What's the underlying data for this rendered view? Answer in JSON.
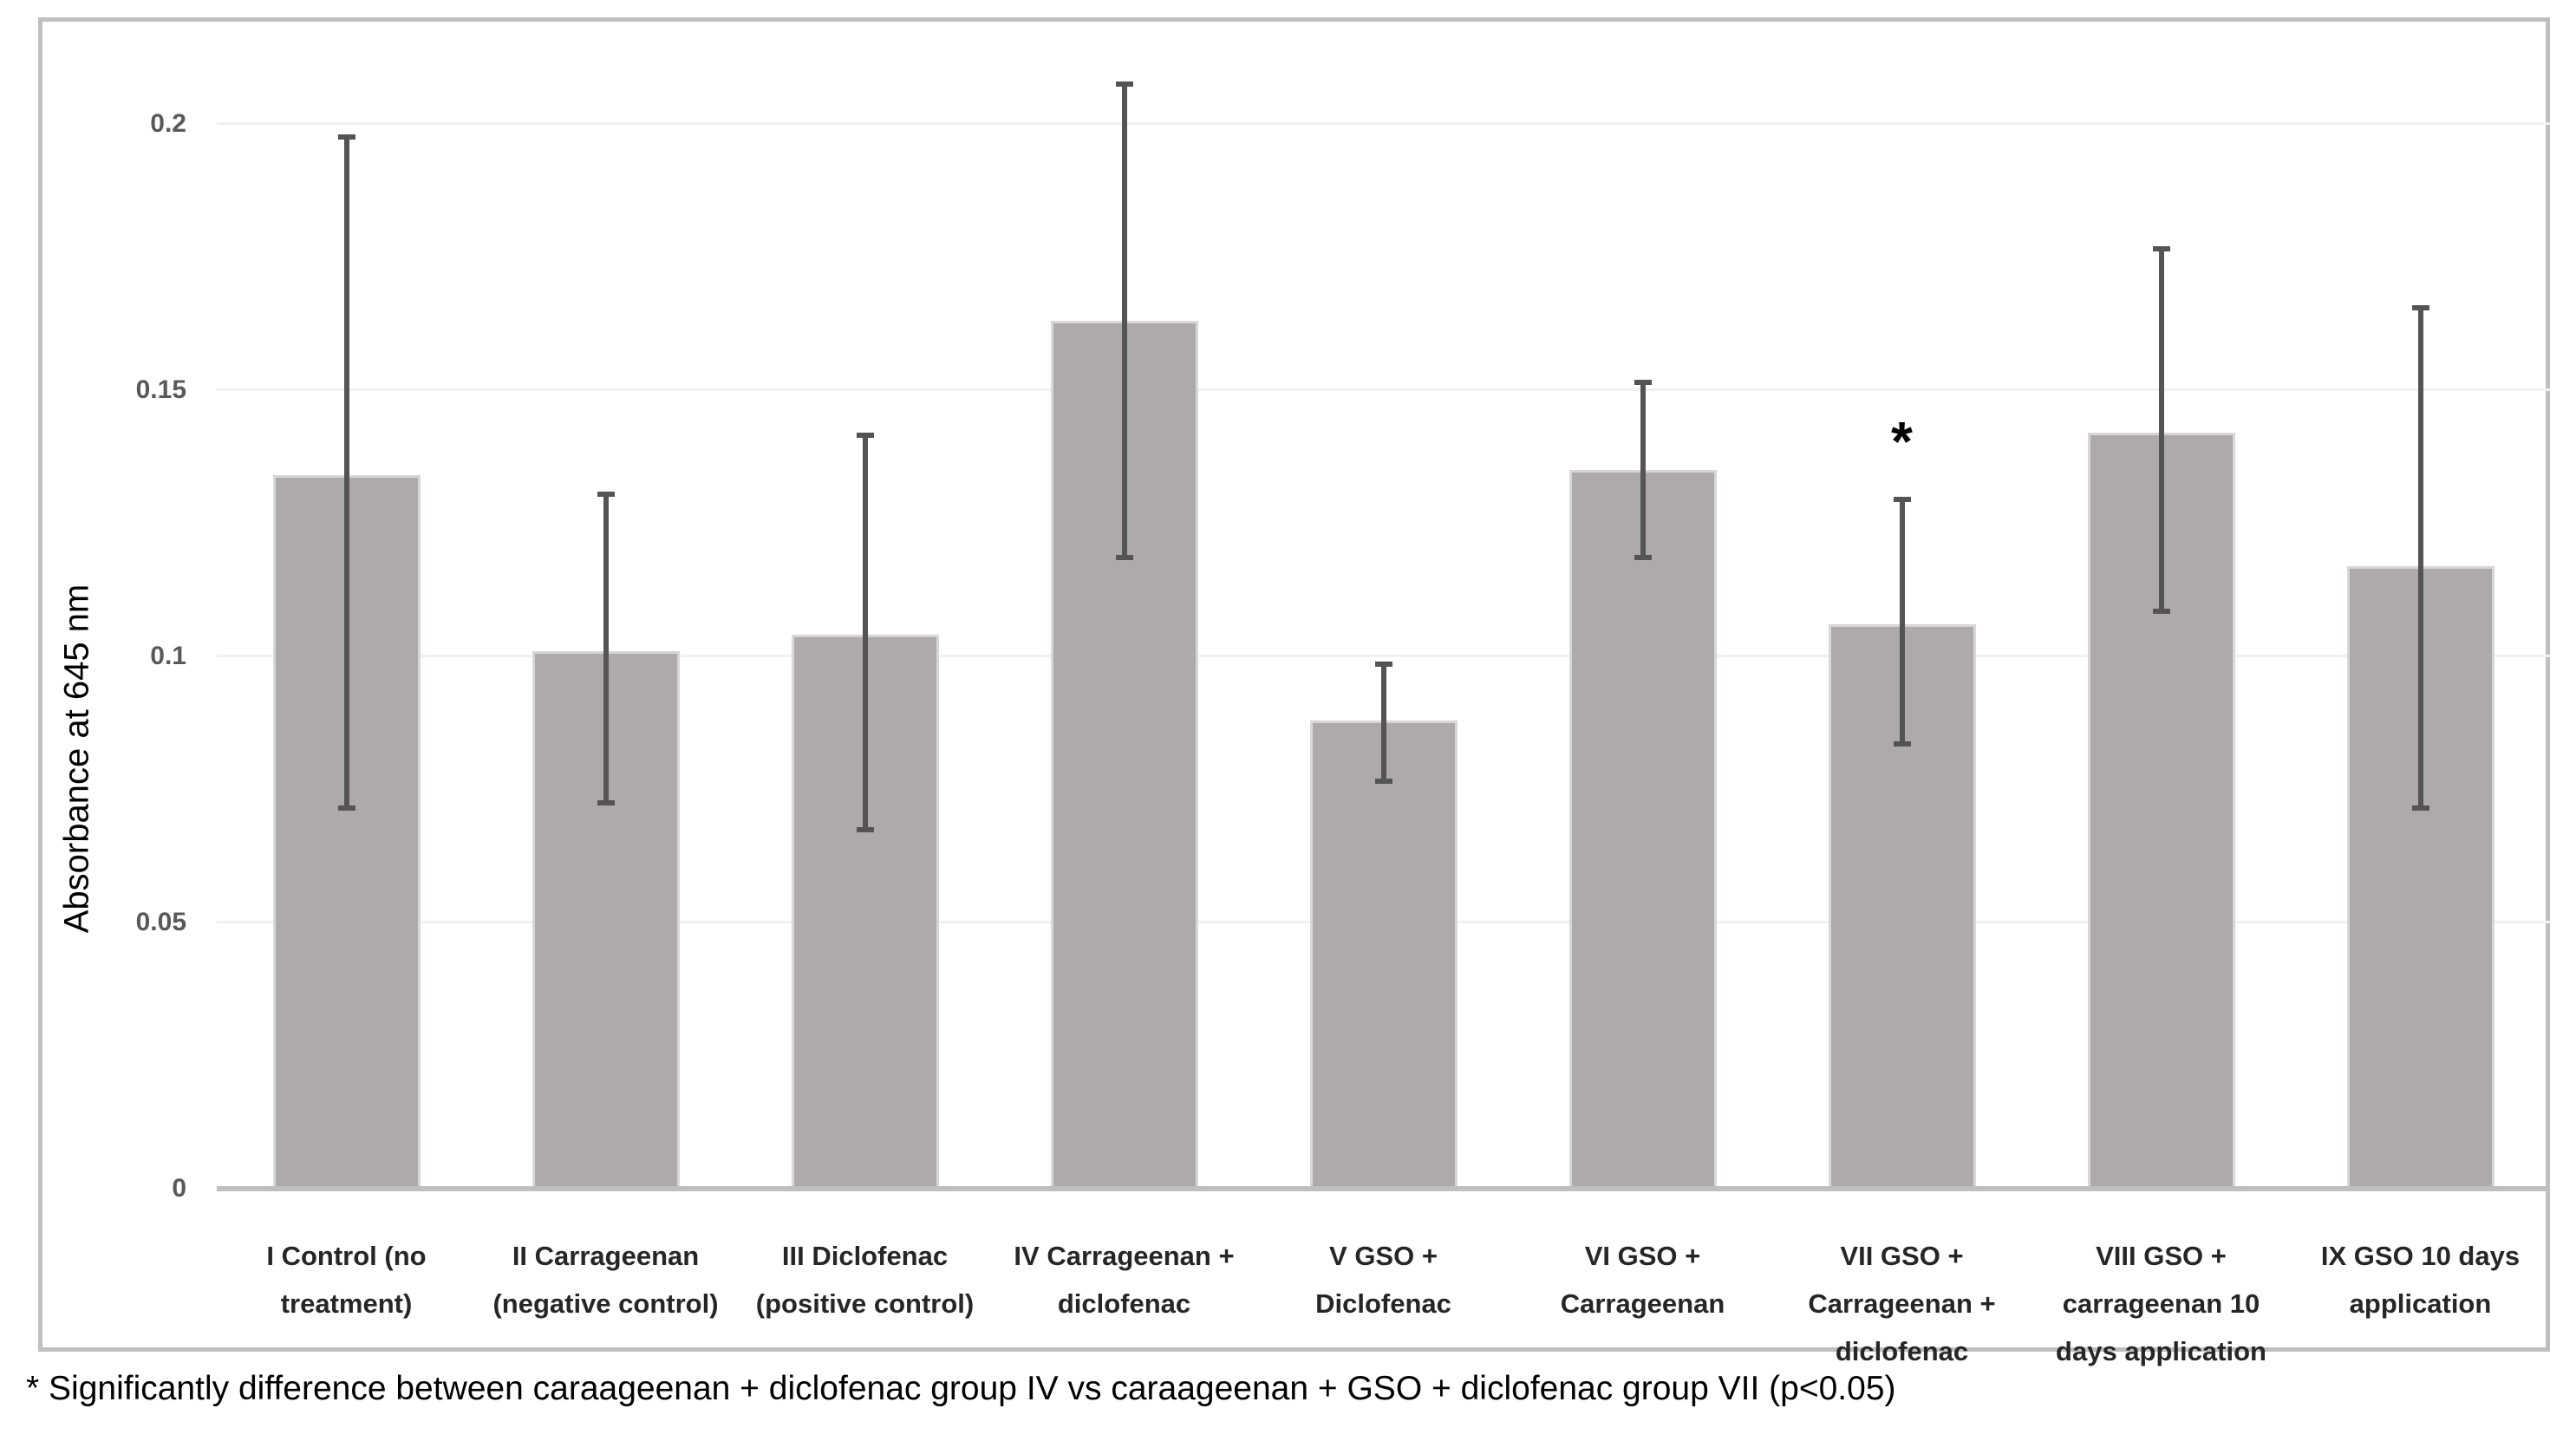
{
  "figure": {
    "background": "#FFFFFF",
    "frame_border_color": "#BFBFBF"
  },
  "chart_data": {
    "type": "bar",
    "title": "",
    "xlabel": "",
    "ylabel": "Absorbance at 645 nm",
    "ylim": [
      0,
      0.219
    ],
    "yticks": [
      0,
      0.05,
      0.1,
      0.15,
      0.2
    ],
    "ytick_labels": [
      "0",
      "0.05",
      "0.1",
      "0.15",
      "0.2"
    ],
    "grid": "horizontal",
    "gridline_color": "#F1F1F1",
    "axis_line_color": "#BFBFBF",
    "bar_color": "#AEAAAA",
    "bar_border_color": "#D9D6D6",
    "error_bar_color": "#545454",
    "legend_position": "none",
    "categories": [
      "I Control (no treatment)",
      "II Carrageenan (negative control)",
      "III Diclofenac (positive control)",
      "IV Carrageenan + diclofenac",
      "V GSO + Diclofenac",
      "VI GSO + Carrageenan",
      "VII GSO + Carrageenan + diclofenac",
      "VIII GSO + carrageenan 10 days application",
      "IX GSO 10 days application"
    ],
    "category_lines": [
      [
        "I Control (no",
        "treatment)"
      ],
      [
        "II Carrageenan",
        "(negative control)"
      ],
      [
        "III Diclofenac",
        "(positive control)"
      ],
      [
        "IV Carrageenan +",
        "diclofenac"
      ],
      [
        "V GSO +",
        "Diclofenac"
      ],
      [
        "VI GSO +",
        "Carrageenan"
      ],
      [
        "VII GSO +",
        "Carrageenan +",
        "diclofenac"
      ],
      [
        "VIII GSO +",
        "carrageenan 10",
        "days application"
      ],
      [
        "IX GSO 10 days",
        "application"
      ]
    ],
    "values": [
      0.134,
      0.101,
      0.104,
      0.163,
      0.088,
      0.135,
      0.106,
      0.142,
      0.117
    ],
    "error_high": [
      0.198,
      0.131,
      0.142,
      0.208,
      0.099,
      0.152,
      0.13,
      0.177,
      0.166
    ],
    "error_low": [
      0.071,
      0.072,
      0.067,
      0.118,
      0.076,
      0.118,
      0.083,
      0.108,
      0.071
    ],
    "annotations": [
      {
        "text": "*",
        "category_index": 6,
        "value": 0.138
      }
    ]
  },
  "footnote": "* Significantly difference between caraageenan + diclofenac group IV vs caraageenan + GSO + diclofenac group VII (p<0.05)"
}
